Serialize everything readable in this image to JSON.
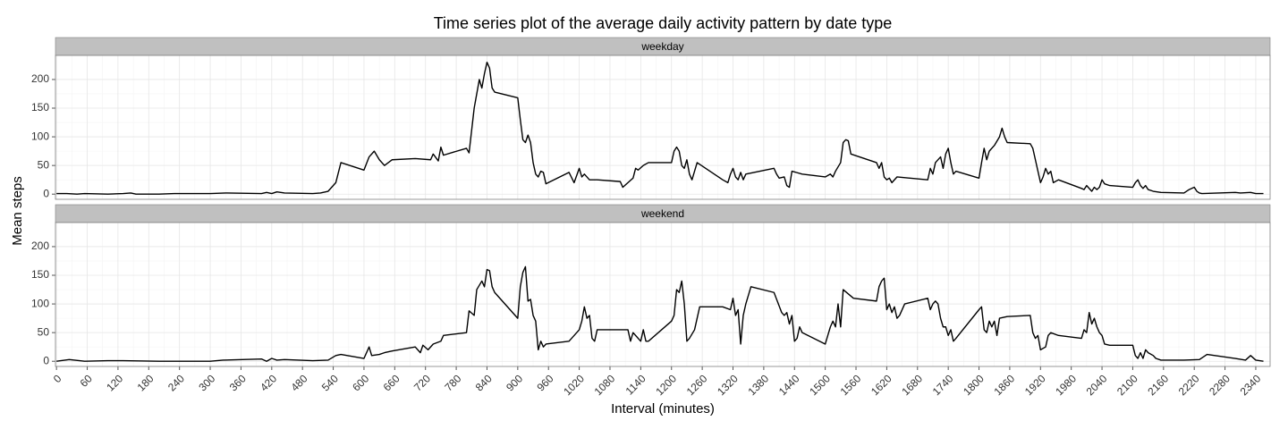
{
  "title": "Time series plot of the average daily activity pattern by date type",
  "x_label": "Interval (minutes)",
  "y_label": "Mean steps",
  "chart_data": [
    {
      "type": "line",
      "panel": "weekday",
      "color": "#000000",
      "grid": true,
      "xlim": [
        -2,
        2368
      ],
      "ylim": [
        -9,
        242
      ],
      "yticks": [
        0,
        50,
        100,
        150,
        200
      ],
      "xticks": [
        0,
        60,
        120,
        180,
        240,
        300,
        360,
        420,
        480,
        540,
        600,
        660,
        720,
        780,
        840,
        900,
        960,
        1020,
        1080,
        1140,
        1200,
        1260,
        1320,
        1380,
        1440,
        1500,
        1560,
        1620,
        1680,
        1740,
        1800,
        1860,
        1920,
        1980,
        2040,
        2100,
        2160,
        2220,
        2280,
        2340
      ],
      "x": [
        0,
        20,
        40,
        55,
        100,
        130,
        145,
        155,
        200,
        230,
        300,
        330,
        400,
        410,
        420,
        430,
        445,
        500,
        515,
        530,
        545,
        555,
        600,
        610,
        620,
        630,
        640,
        655,
        700,
        730,
        735,
        745,
        750,
        755,
        800,
        805,
        815,
        825,
        830,
        835,
        840,
        845,
        850,
        855,
        900,
        905,
        910,
        915,
        920,
        925,
        930,
        935,
        940,
        945,
        950,
        955,
        1000,
        1010,
        1020,
        1025,
        1030,
        1040,
        1055,
        1100,
        1105,
        1115,
        1125,
        1130,
        1135,
        1145,
        1155,
        1200,
        1205,
        1210,
        1215,
        1220,
        1225,
        1230,
        1235,
        1240,
        1245,
        1250,
        1300,
        1310,
        1315,
        1320,
        1325,
        1330,
        1335,
        1340,
        1345,
        1400,
        1405,
        1410,
        1420,
        1425,
        1430,
        1435,
        1455,
        1500,
        1510,
        1515,
        1520,
        1530,
        1535,
        1540,
        1545,
        1550,
        1600,
        1605,
        1610,
        1615,
        1620,
        1625,
        1630,
        1640,
        1700,
        1705,
        1710,
        1715,
        1725,
        1730,
        1735,
        1740,
        1745,
        1750,
        1755,
        1800,
        1805,
        1810,
        1815,
        1820,
        1830,
        1840,
        1845,
        1850,
        1855,
        1900,
        1905,
        1910,
        1915,
        1920,
        1925,
        1930,
        1935,
        1940,
        1945,
        1955,
        2000,
        2005,
        2010,
        2020,
        2025,
        2030,
        2035,
        2040,
        2045,
        2055,
        2100,
        2105,
        2110,
        2115,
        2120,
        2125,
        2130,
        2140,
        2155,
        2200,
        2210,
        2220,
        2225,
        2230,
        2235,
        2300,
        2310,
        2330,
        2340,
        2355
      ],
      "values": [
        1,
        1,
        0,
        1,
        0,
        1,
        2,
        0,
        0,
        1,
        1,
        2,
        1,
        3,
        1,
        4,
        2,
        1,
        2,
        5,
        20,
        55,
        42,
        65,
        75,
        60,
        50,
        60,
        62,
        60,
        70,
        58,
        82,
        68,
        80,
        72,
        150,
        200,
        185,
        210,
        230,
        220,
        185,
        178,
        168,
        130,
        95,
        90,
        103,
        90,
        55,
        35,
        30,
        40,
        38,
        18,
        38,
        20,
        45,
        30,
        35,
        25,
        25,
        22,
        12,
        20,
        28,
        45,
        42,
        50,
        55,
        55,
        75,
        82,
        75,
        50,
        45,
        60,
        35,
        25,
        40,
        55,
        25,
        20,
        35,
        45,
        30,
        25,
        38,
        25,
        35,
        45,
        35,
        28,
        30,
        15,
        12,
        40,
        35,
        30,
        35,
        30,
        40,
        55,
        90,
        95,
        93,
        70,
        55,
        45,
        55,
        30,
        25,
        28,
        20,
        30,
        25,
        45,
        35,
        55,
        65,
        45,
        70,
        80,
        55,
        35,
        40,
        28,
        55,
        80,
        60,
        75,
        85,
        100,
        115,
        100,
        90,
        88,
        80,
        60,
        40,
        20,
        30,
        45,
        35,
        40,
        20,
        25,
        10,
        8,
        15,
        5,
        12,
        8,
        12,
        25,
        18,
        15,
        12,
        20,
        25,
        15,
        10,
        15,
        8,
        5,
        3,
        2,
        8,
        12,
        5,
        2,
        1,
        3,
        2,
        3,
        1,
        1
      ]
    },
    {
      "type": "line",
      "panel": "weekend",
      "color": "#000000",
      "grid": true,
      "xlim": [
        -2,
        2368
      ],
      "ylim": [
        -9,
        242
      ],
      "yticks": [
        0,
        50,
        100,
        150,
        200
      ],
      "xticks": [
        0,
        60,
        120,
        180,
        240,
        300,
        360,
        420,
        480,
        540,
        600,
        660,
        720,
        780,
        840,
        900,
        960,
        1020,
        1080,
        1140,
        1200,
        1260,
        1320,
        1380,
        1440,
        1500,
        1560,
        1620,
        1680,
        1740,
        1800,
        1860,
        1920,
        1980,
        2040,
        2100,
        2160,
        2220,
        2280,
        2340
      ],
      "x": [
        0,
        25,
        55,
        100,
        130,
        200,
        300,
        325,
        400,
        410,
        420,
        430,
        445,
        500,
        530,
        545,
        555,
        600,
        610,
        615,
        630,
        640,
        655,
        700,
        710,
        715,
        725,
        735,
        750,
        755,
        800,
        805,
        815,
        820,
        830,
        835,
        840,
        845,
        850,
        855,
        900,
        905,
        910,
        915,
        920,
        925,
        930,
        935,
        940,
        945,
        950,
        955,
        1000,
        1015,
        1020,
        1025,
        1030,
        1035,
        1040,
        1045,
        1050,
        1055,
        1100,
        1115,
        1120,
        1125,
        1130,
        1140,
        1145,
        1150,
        1155,
        1200,
        1205,
        1210,
        1215,
        1220,
        1225,
        1230,
        1235,
        1245,
        1255,
        1300,
        1315,
        1320,
        1325,
        1330,
        1335,
        1340,
        1345,
        1355,
        1400,
        1415,
        1420,
        1425,
        1430,
        1435,
        1440,
        1445,
        1450,
        1455,
        1500,
        1505,
        1510,
        1515,
        1520,
        1525,
        1530,
        1535,
        1555,
        1600,
        1605,
        1610,
        1615,
        1620,
        1625,
        1630,
        1635,
        1640,
        1645,
        1655,
        1700,
        1705,
        1710,
        1715,
        1720,
        1725,
        1730,
        1735,
        1740,
        1745,
        1750,
        1755,
        1800,
        1805,
        1810,
        1815,
        1820,
        1825,
        1830,
        1835,
        1840,
        1855,
        1900,
        1905,
        1910,
        1915,
        1920,
        1930,
        1935,
        1940,
        1955,
        2000,
        2005,
        2010,
        2015,
        2020,
        2025,
        2030,
        2035,
        2040,
        2045,
        2055,
        2100,
        2105,
        2110,
        2115,
        2120,
        2125,
        2130,
        2140,
        2145,
        2155,
        2200,
        2230,
        2245,
        2300,
        2320,
        2330,
        2340,
        2355
      ],
      "values": [
        0,
        3,
        0,
        1,
        1,
        0,
        0,
        2,
        4,
        0,
        5,
        2,
        3,
        1,
        2,
        10,
        12,
        5,
        25,
        10,
        12,
        15,
        18,
        25,
        15,
        28,
        20,
        30,
        35,
        45,
        50,
        88,
        80,
        125,
        140,
        130,
        160,
        158,
        130,
        120,
        75,
        130,
        155,
        165,
        105,
        108,
        80,
        70,
        20,
        35,
        25,
        30,
        35,
        50,
        55,
        70,
        95,
        75,
        80,
        40,
        35,
        55,
        55,
        55,
        35,
        50,
        45,
        35,
        55,
        35,
        35,
        70,
        80,
        125,
        120,
        140,
        100,
        35,
        40,
        55,
        95,
        95,
        90,
        110,
        80,
        90,
        30,
        80,
        100,
        130,
        120,
        85,
        80,
        85,
        65,
        80,
        35,
        40,
        60,
        50,
        30,
        45,
        60,
        70,
        60,
        100,
        60,
        125,
        110,
        105,
        130,
        140,
        145,
        90,
        100,
        85,
        95,
        75,
        80,
        100,
        110,
        90,
        100,
        105,
        100,
        75,
        60,
        60,
        45,
        55,
        35,
        40,
        90,
        95,
        55,
        50,
        70,
        60,
        70,
        45,
        75,
        78,
        80,
        50,
        40,
        45,
        20,
        25,
        45,
        50,
        45,
        40,
        55,
        50,
        85,
        65,
        75,
        60,
        50,
        45,
        30,
        28,
        28,
        10,
        5,
        15,
        5,
        20,
        15,
        10,
        5,
        2,
        2,
        3,
        12,
        5,
        2,
        10,
        2,
        0
      ]
    }
  ]
}
